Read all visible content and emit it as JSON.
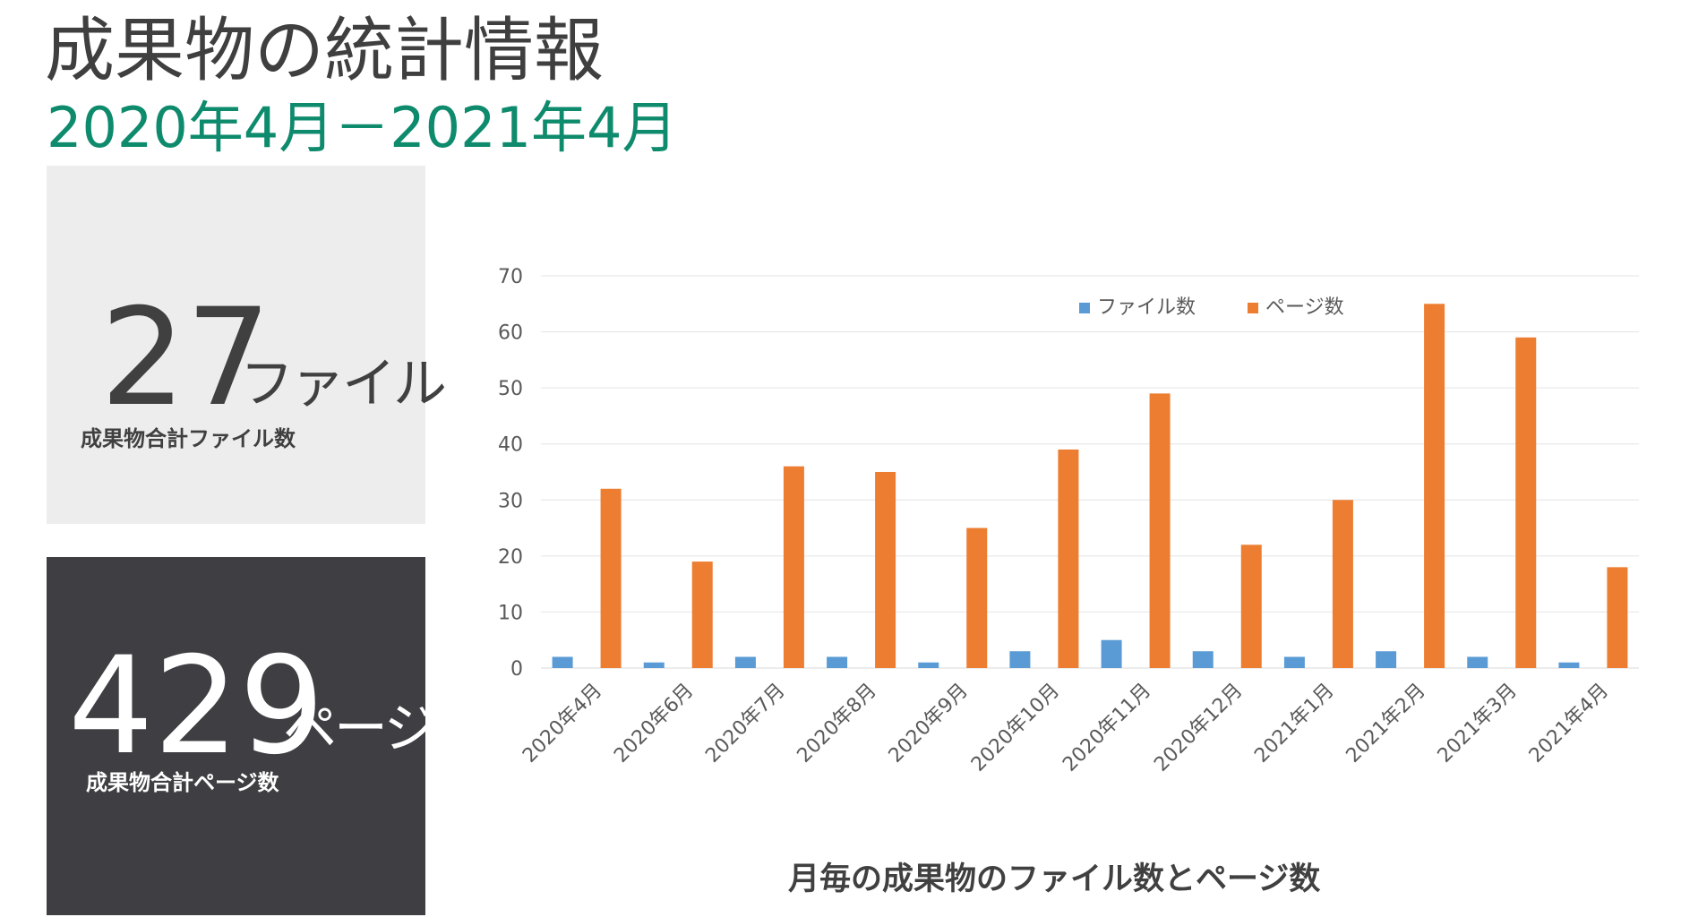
{
  "header": {
    "title": "成果物の統計情報",
    "subtitle": "2020年4月－2021年4月"
  },
  "stats": {
    "files": {
      "value": "27",
      "unit": "ファイル",
      "label": "成果物合計ファイル数"
    },
    "pages": {
      "value": "429",
      "unit": "ページ",
      "label": "成果物合計ページ数"
    }
  },
  "chart_data": {
    "type": "bar",
    "title": "月毎の成果物のファイル数とページ数",
    "xlabel": "",
    "ylabel": "",
    "categories": [
      "2020年4月",
      "2020年6月",
      "2020年7月",
      "2020年8月",
      "2020年9月",
      "2020年10月",
      "2020年11月",
      "2020年12月",
      "2021年1月",
      "2021年2月",
      "2021年3月",
      "2021年4月"
    ],
    "series": [
      {
        "name": "ファイル数",
        "color": "#5b9bd5",
        "values": [
          2,
          1,
          2,
          2,
          1,
          3,
          5,
          3,
          2,
          3,
          2,
          1
        ]
      },
      {
        "name": "ページ数",
        "color": "#ed7d31",
        "values": [
          32,
          19,
          36,
          35,
          25,
          39,
          49,
          22,
          30,
          65,
          59,
          18
        ]
      }
    ],
    "ylim": [
      0,
      70
    ],
    "yticks": [
      0,
      10,
      20,
      30,
      40,
      50,
      60,
      70
    ],
    "grid": true,
    "legend_position": "top-right"
  }
}
